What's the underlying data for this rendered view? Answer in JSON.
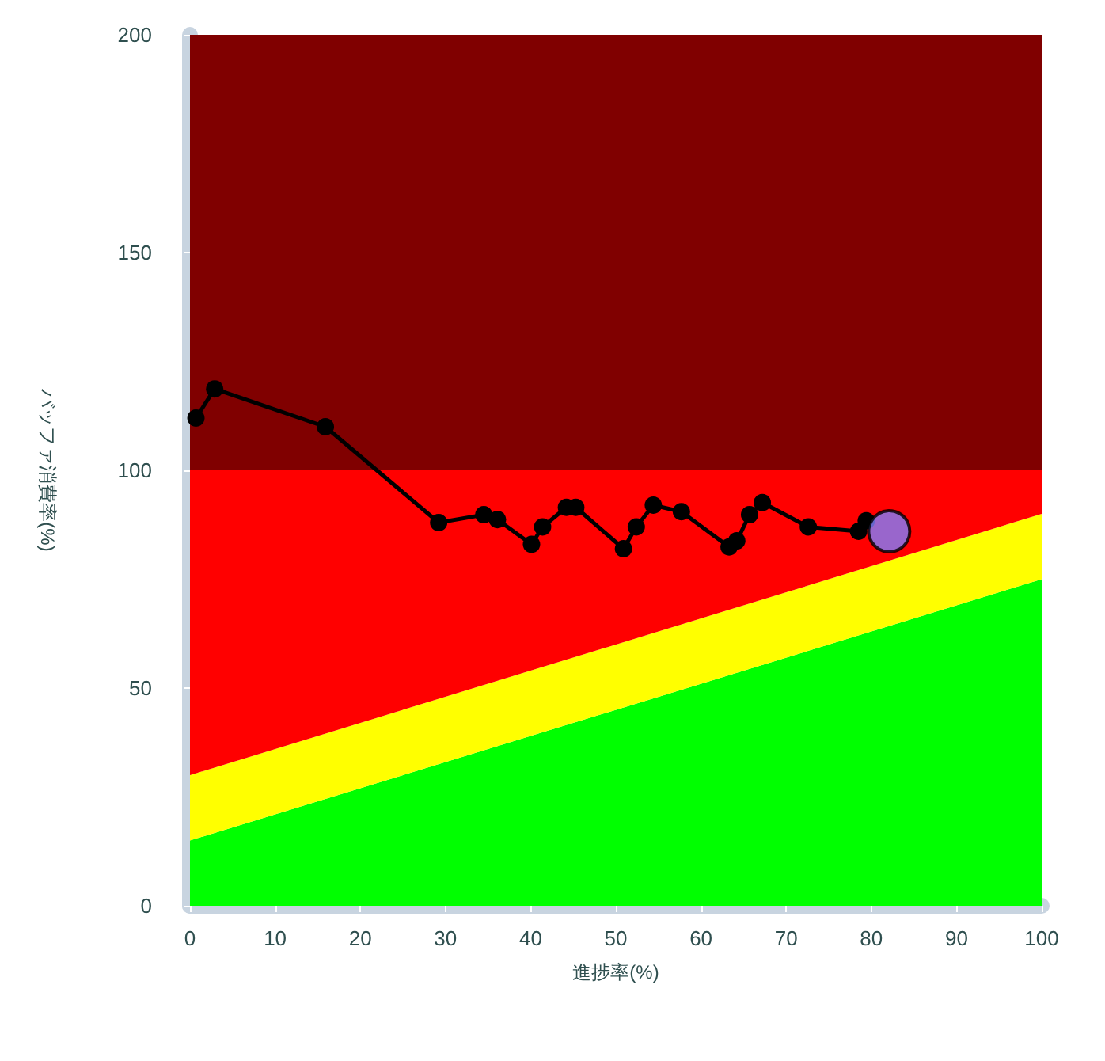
{
  "chart_data": {
    "type": "area",
    "xlabel": "進捗率(%)",
    "ylabel": "バッファ消費率(%)",
    "x": [
      0,
      100
    ],
    "stacked": true,
    "xlim": [
      0,
      100
    ],
    "xticks": [
      0,
      10,
      20,
      30,
      40,
      50,
      60,
      70,
      80,
      90,
      100
    ],
    "ylim": [
      0,
      200
    ],
    "yticks": [
      0,
      50,
      100,
      150,
      200
    ],
    "grid": false,
    "series": [
      {
        "color": "#00ff00",
        "values": [
          15,
          75
        ]
      },
      {
        "color": "#ffff00",
        "values": [
          15,
          15
        ]
      },
      {
        "color": "#ff0000",
        "values": [
          70,
          10
        ]
      },
      {
        "color": "#800000",
        "values": [
          100,
          100
        ]
      },
      {
        "type": "line",
        "marker": "circle",
        "color": "#000000",
        "x": [
          0.7,
          2.9,
          15.9,
          29.2,
          34.5,
          36.1,
          40.1,
          41.4,
          44.2,
          45.3,
          50.9,
          52.4,
          54.4,
          57.7,
          63.3,
          64.2,
          65.7,
          67.2,
          72.6,
          78.5,
          79.4
        ],
        "values": [
          112,
          118.7,
          110,
          88,
          89.8,
          88.7,
          83,
          87,
          91.5,
          91.5,
          82,
          87,
          92,
          90.5,
          82.4,
          83.8,
          89.8,
          92.6,
          87,
          86,
          88.4
        ]
      },
      {
        "type": "scatter",
        "marker": "circle",
        "color": "#8080ff",
        "x": [
          82.1
        ],
        "values": [
          86
        ]
      }
    ]
  }
}
